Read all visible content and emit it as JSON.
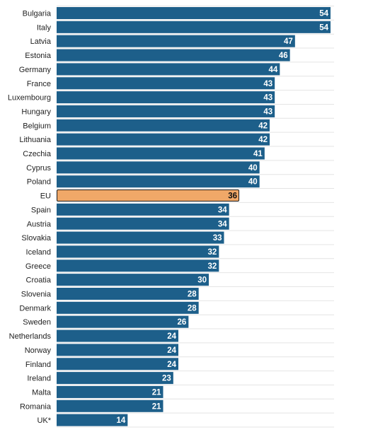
{
  "chart_data": {
    "type": "bar",
    "orientation": "horizontal",
    "categories": [
      "Bulgaria",
      "Italy",
      "Latvia",
      "Estonia",
      "Germany",
      "France",
      "Luxembourg",
      "Hungary",
      "Belgium",
      "Lithuania",
      "Czechia",
      "Cyprus",
      "Poland",
      "EU",
      "Spain",
      "Austria",
      "Slovakia",
      "Iceland",
      "Greece",
      "Croatia",
      "Slovenia",
      "Denmark",
      "Sweden",
      "Netherlands",
      "Norway",
      "Finland",
      "Ireland",
      "Malta",
      "Romania",
      "UK*"
    ],
    "values": [
      54,
      54,
      47,
      46,
      44,
      43,
      43,
      43,
      42,
      42,
      41,
      40,
      40,
      36,
      34,
      34,
      33,
      32,
      32,
      30,
      28,
      28,
      26,
      24,
      24,
      24,
      23,
      21,
      21,
      14
    ],
    "highlight": "EU",
    "xlim": [
      0,
      54
    ],
    "grid": true,
    "colors": {
      "bar": "#1d5f8a",
      "highlight": "#f0a868",
      "highlight_border": "#1a1a1a",
      "value_label": "#ffffff",
      "highlight_label": "#111111",
      "grid": "#e4e4e4"
    }
  }
}
